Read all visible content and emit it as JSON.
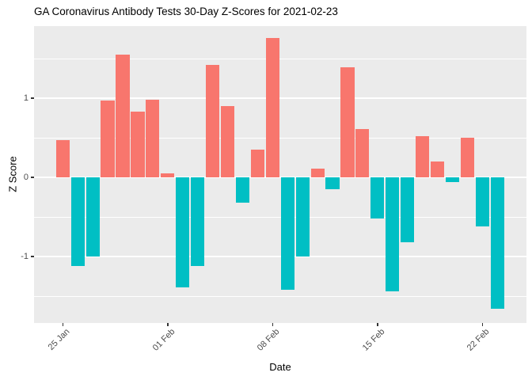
{
  "chart_data": {
    "type": "bar",
    "title": "GA Coronavirus Antibody Tests 30-Day Z-Scores for 2021-02-23",
    "xlabel": "Date",
    "ylabel": "Z Score",
    "grid": true,
    "legend_position": "none",
    "dates": [
      "2021-01-25",
      "2021-01-26",
      "2021-01-27",
      "2021-01-28",
      "2021-01-29",
      "2021-01-30",
      "2021-01-31",
      "2021-02-01",
      "2021-02-02",
      "2021-02-03",
      "2021-02-04",
      "2021-02-05",
      "2021-02-06",
      "2021-02-07",
      "2021-02-08",
      "2021-02-09",
      "2021-02-10",
      "2021-02-11",
      "2021-02-12",
      "2021-02-13",
      "2021-02-14",
      "2021-02-15",
      "2021-02-16",
      "2021-02-17",
      "2021-02-18",
      "2021-02-19",
      "2021-02-20",
      "2021-02-21",
      "2021-02-22",
      "2021-02-23"
    ],
    "values": [
      0.47,
      -1.12,
      -1.0,
      0.97,
      1.55,
      0.83,
      0.98,
      0.05,
      -1.39,
      -1.12,
      1.42,
      0.9,
      -0.32,
      0.35,
      1.76,
      -1.42,
      -1.0,
      0.11,
      -0.15,
      1.39,
      0.61,
      -0.52,
      -1.44,
      -0.82,
      0.52,
      0.2,
      -0.06,
      0.5,
      -0.62,
      -1.66
    ],
    "x_ticks": [
      {
        "label": "25 Jan",
        "date": "2021-01-25"
      },
      {
        "label": "01 Feb",
        "date": "2021-02-01"
      },
      {
        "label": "08 Feb",
        "date": "2021-02-08"
      },
      {
        "label": "15 Feb",
        "date": "2021-02-15"
      },
      {
        "label": "22 Feb",
        "date": "2021-02-22"
      }
    ],
    "y_axis": {
      "ticks": [
        1,
        0,
        -1
      ],
      "tick_labels": [
        "1",
        "0",
        "-1"
      ],
      "minor_ticks": [
        1.5,
        0.5,
        -0.5,
        -1.5
      ],
      "lim": [
        -1.84,
        1.91
      ]
    },
    "colors": {
      "positive_bar": "#F8766D",
      "negative_bar": "#00BFC4",
      "panel_background": "#EBEBEB",
      "gridline": "#FFFFFF",
      "axis_text": "#4D4D4D",
      "tick_mark": "#333333",
      "title_text": "#000000"
    }
  }
}
